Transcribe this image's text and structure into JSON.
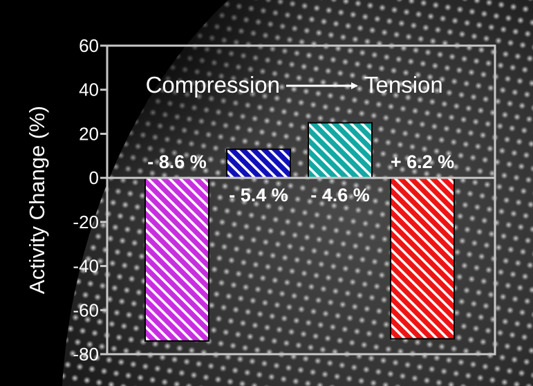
{
  "chart_data": {
    "type": "bar",
    "ylabel": "Activity Change (%)",
    "ylim": [
      -80,
      60
    ],
    "yticks": [
      60,
      40,
      20,
      0,
      -20,
      -40,
      -60,
      -80
    ],
    "bars": [
      {
        "value": -74,
        "label": "- 8.6 %",
        "color": "#c82ee0",
        "label_side": "above"
      },
      {
        "value": 13,
        "label": "- 5.4 %",
        "color": "#1010b8",
        "label_side": "below"
      },
      {
        "value": 25,
        "label": "- 4.6 %",
        "color": "#12a8a4",
        "label_side": "below"
      },
      {
        "value": -73,
        "label": "+ 6.2 %",
        "color": "#ee1414",
        "label_side": "above"
      }
    ],
    "annotation": {
      "from": "Compression",
      "to": "Tension",
      "arrow": "right-arrow"
    },
    "background": "atomic-lattice-micrograph",
    "axis_color": "#c8c8c8",
    "text_color": "#ffffff"
  }
}
